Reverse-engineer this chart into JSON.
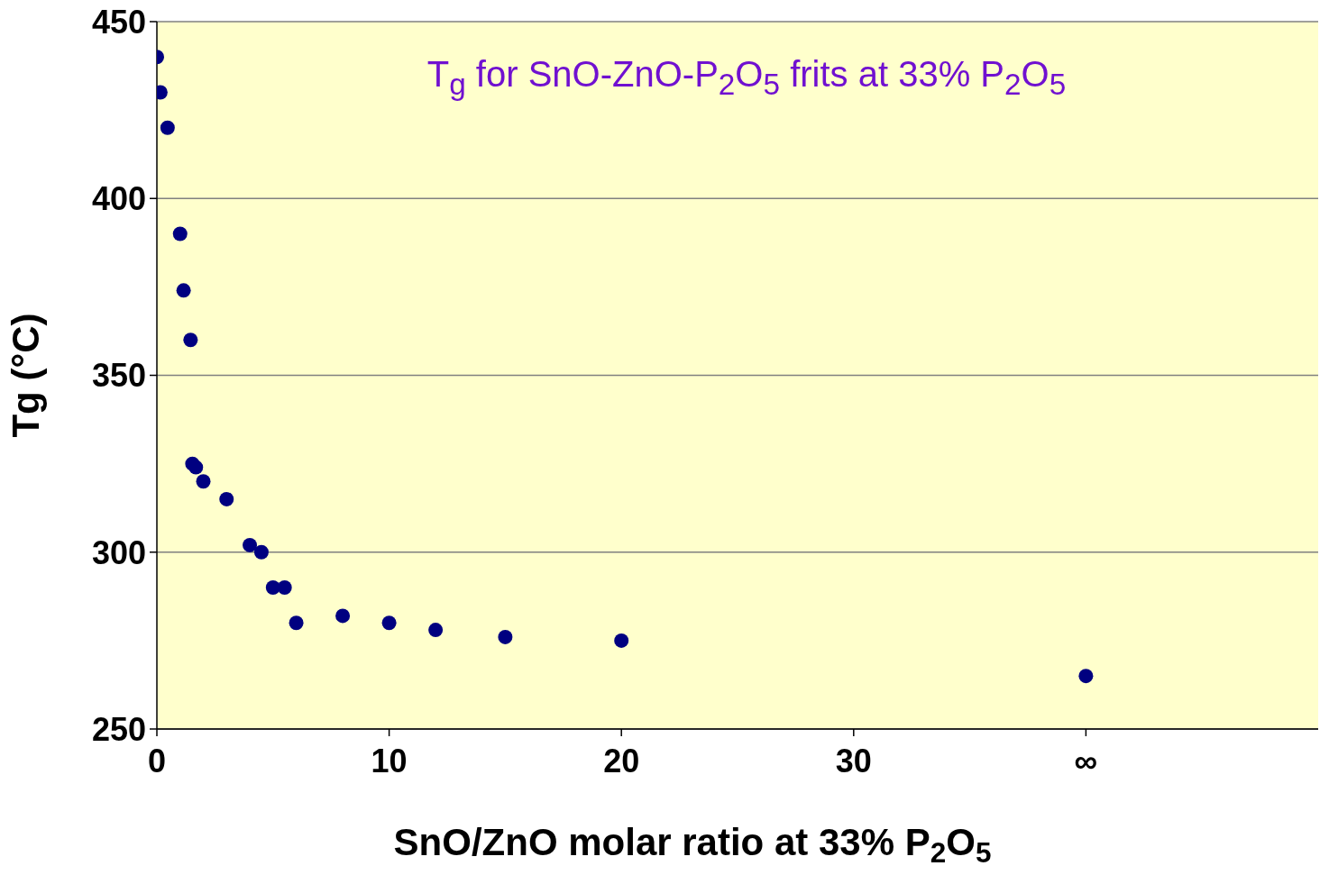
{
  "chart_data": {
    "type": "scatter",
    "title": "T$_{g}$ for SnO-ZnO-P$_{2}$O$_{5}$ frits at 33% P$_{2}$O$_{5}$",
    "xlabel": "SnO/ZnO molar ratio at 33% P$_{2}$O$_{5}$",
    "ylabel": "Tg (°C)",
    "x": [
      0,
      0.15,
      0.46,
      1,
      1.15,
      1.45,
      1.53,
      1.68,
      2,
      3,
      4,
      4.5,
      5,
      5.5,
      6,
      8,
      10,
      12,
      15,
      20,
      40
    ],
    "series": [
      {
        "color": "#000080",
        "values": [
          440,
          430,
          420,
          390,
          374,
          360,
          325,
          324,
          320,
          315,
          302,
          300,
          290,
          290,
          280,
          282,
          280,
          278,
          276,
          275,
          265
        ]
      }
    ],
    "xlim": [
      0,
      50
    ],
    "xticks": [
      0,
      10,
      20,
      30,
      {
        "value": 40,
        "label": "∞"
      }
    ],
    "ylim": [
      250,
      450
    ],
    "yticks": [
      250,
      300,
      350,
      400,
      450
    ],
    "grid": "y",
    "marker": "circle"
  }
}
